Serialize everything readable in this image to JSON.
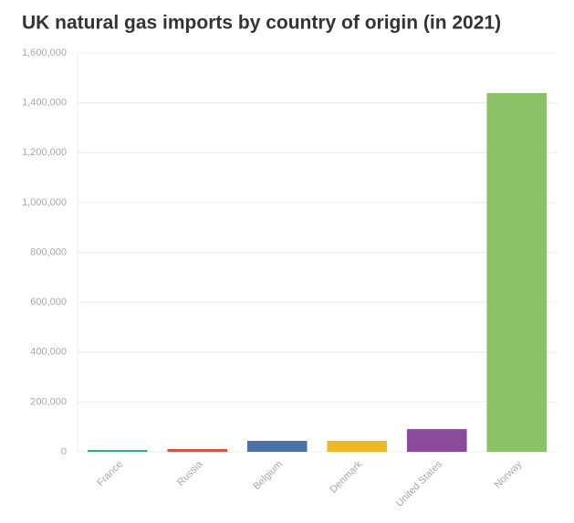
{
  "chart_data": {
    "type": "bar",
    "title": "UK natural gas imports by country of origin (in 2021)",
    "categories": [
      "France",
      "Russia",
      "Belgium",
      "Denmark",
      "United States",
      "Norway"
    ],
    "values": [
      7000,
      11000,
      44000,
      44000,
      91000,
      1439000
    ],
    "colors": [
      "#2ca58d",
      "#d5533f",
      "#4a72a8",
      "#ecb824",
      "#8a4c9a",
      "#8bc169"
    ],
    "ylim": [
      0,
      1600000
    ],
    "yticks": [
      {
        "value": 0,
        "label": "0"
      },
      {
        "value": 200000,
        "label": "200,000"
      },
      {
        "value": 400000,
        "label": "400,000"
      },
      {
        "value": 600000,
        "label": "600,000"
      },
      {
        "value": 800000,
        "label": "800,000"
      },
      {
        "value": 1000000,
        "label": "1,000,000"
      },
      {
        "value": 1200000,
        "label": "1,200,000"
      },
      {
        "value": 1400000,
        "label": "1,400,000"
      },
      {
        "value": 1600000,
        "label": "1,600,000"
      }
    ],
    "grid": true
  }
}
